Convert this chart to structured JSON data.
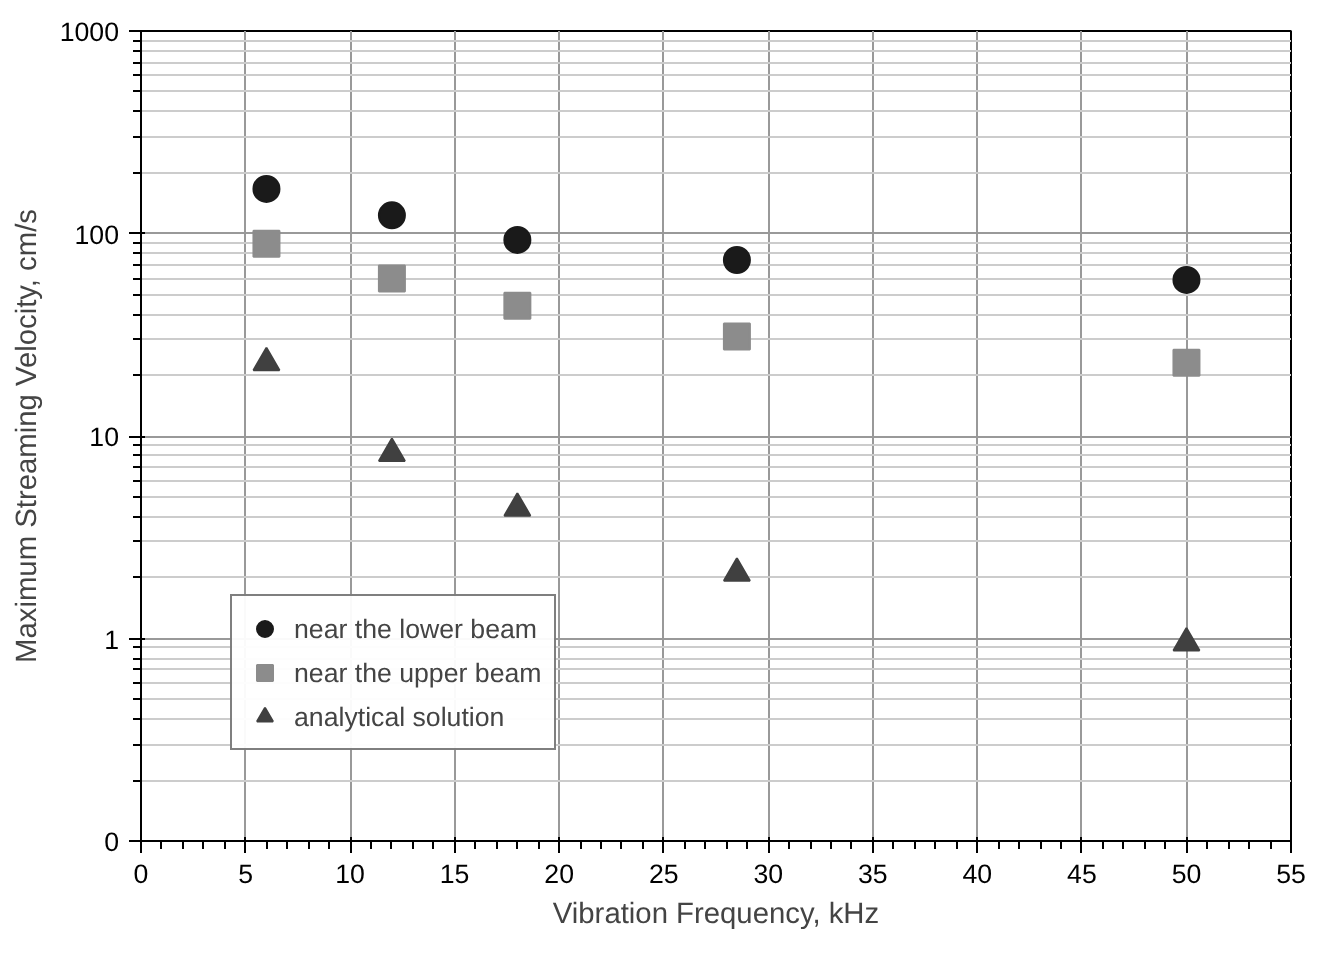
{
  "chart_data": {
    "type": "scatter",
    "xlabel": "Vibration Frequency, kHz",
    "ylabel": "Maximum Streaming Velocity, cm/s",
    "x": [
      6,
      12,
      18,
      28.5,
      50
    ],
    "series": [
      {
        "name": "near the lower beam",
        "color": "#1a1a1a",
        "marker": "circle",
        "values": [
          166,
          123,
          93,
          74,
          59
        ]
      },
      {
        "name": "near the upper beam",
        "color": "#8c8c8c",
        "marker": "square",
        "values": [
          89,
          60,
          44,
          31,
          23
        ]
      },
      {
        "name": "analytical solution",
        "color": "#404040",
        "marker": "triangle",
        "values": [
          23,
          8.2,
          4.4,
          2.1,
          0.95
        ]
      }
    ],
    "log": "y",
    "xlim": [
      0,
      55
    ],
    "xticks": [
      0,
      5,
      10,
      15,
      20,
      25,
      30,
      35,
      40,
      45,
      50,
      55
    ],
    "ylim": [
      0.1,
      1000
    ],
    "yticks": [
      {
        "value": 0.1,
        "label": "0"
      },
      1,
      10,
      100,
      1000
    ],
    "grid": true,
    "legend": "bottom left"
  }
}
